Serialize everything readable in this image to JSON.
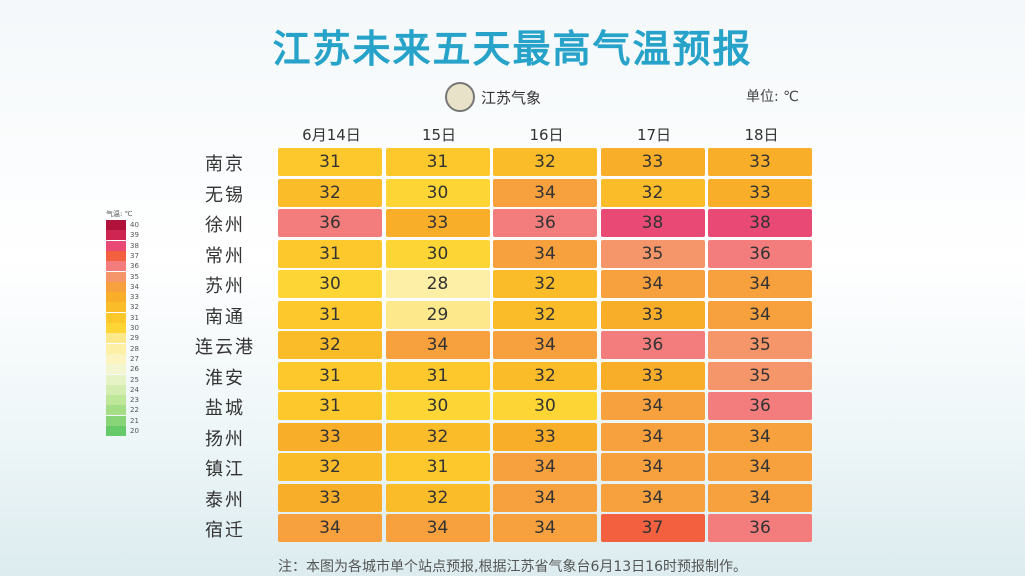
{
  "header": {
    "title": "江苏未来五天最高气温预报",
    "logo": "江苏气象",
    "unit": "单位: ℃"
  },
  "table": {
    "columns": [
      "6月14日",
      "15日",
      "16日",
      "17日",
      "18日"
    ],
    "rows": [
      {
        "city": "南京",
        "values": [
          31,
          31,
          32,
          33,
          33
        ]
      },
      {
        "city": "无锡",
        "values": [
          32,
          30,
          34,
          32,
          33
        ]
      },
      {
        "city": "徐州",
        "values": [
          36,
          33,
          36,
          38,
          38
        ]
      },
      {
        "city": "常州",
        "values": [
          31,
          30,
          34,
          35,
          36
        ]
      },
      {
        "city": "苏州",
        "values": [
          30,
          28,
          32,
          34,
          34
        ]
      },
      {
        "city": "南通",
        "values": [
          31,
          29,
          32,
          33,
          34
        ]
      },
      {
        "city": "连云港",
        "values": [
          32,
          34,
          34,
          36,
          35
        ]
      },
      {
        "city": "淮安",
        "values": [
          31,
          31,
          32,
          33,
          35
        ]
      },
      {
        "city": "盐城",
        "values": [
          31,
          30,
          30,
          34,
          36
        ]
      },
      {
        "city": "扬州",
        "values": [
          33,
          32,
          33,
          34,
          34
        ]
      },
      {
        "city": "镇江",
        "values": [
          32,
          31,
          34,
          34,
          34
        ]
      },
      {
        "city": "泰州",
        "values": [
          33,
          32,
          34,
          34,
          34
        ]
      },
      {
        "city": "宿迁",
        "values": [
          34,
          34,
          34,
          37,
          36
        ]
      }
    ]
  },
  "legend": {
    "title": "气温: ℃",
    "entries": [
      {
        "value": 40,
        "color": "#b0123c"
      },
      {
        "value": 39,
        "color": "#cf2553"
      },
      {
        "value": 38,
        "color": "#e94a75"
      },
      {
        "value": 37,
        "color": "#f2603f"
      },
      {
        "value": 36,
        "color": "#f27d7c"
      },
      {
        "value": 35,
        "color": "#f4956a"
      },
      {
        "value": 34,
        "color": "#f6a03e"
      },
      {
        "value": 33,
        "color": "#f9ae2a"
      },
      {
        "value": 32,
        "color": "#fbbc2a"
      },
      {
        "value": 31,
        "color": "#fcc82c"
      },
      {
        "value": 30,
        "color": "#fdd534"
      },
      {
        "value": 29,
        "color": "#fde98c"
      },
      {
        "value": 28,
        "color": "#fdf0a6"
      },
      {
        "value": 27,
        "color": "#fcf4c0"
      },
      {
        "value": 26,
        "color": "#f3f6d0"
      },
      {
        "value": 25,
        "color": "#e6f3c4"
      },
      {
        "value": 24,
        "color": "#d3eeb0"
      },
      {
        "value": 23,
        "color": "#bfe79a"
      },
      {
        "value": 22,
        "color": "#a5de86"
      },
      {
        "value": 21,
        "color": "#88d578"
      },
      {
        "value": 20,
        "color": "#66c96a"
      }
    ]
  },
  "footer": {
    "note": "注：本图为各城市单个站点预报,根据江苏省气象台6月13日16时预报制作。"
  }
}
